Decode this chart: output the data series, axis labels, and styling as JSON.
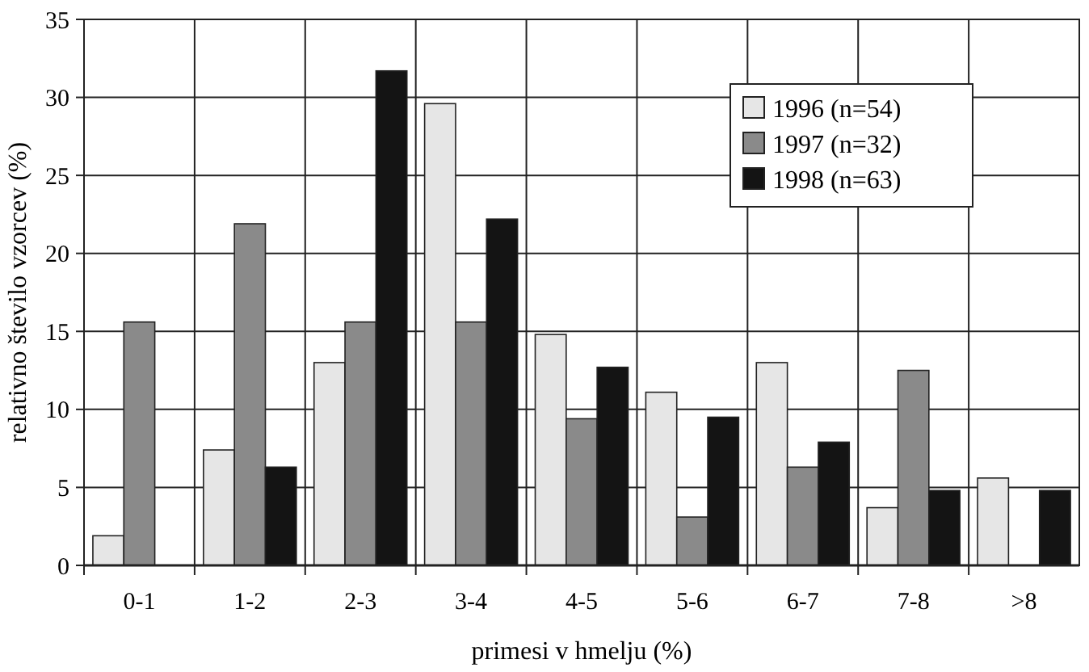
{
  "chart_data": {
    "type": "bar",
    "xlabel": "primesi v hmelju (%)",
    "ylabel": "relativno število vzorcev (%)",
    "categories": [
      "0-1",
      "1-2",
      "2-3",
      "3-4",
      "4-5",
      "5-6",
      "6-7",
      "7-8",
      ">8"
    ],
    "series": [
      {
        "name": "1996 (n=54)",
        "color": "#e6e6e6",
        "values": [
          1.9,
          7.4,
          13,
          29.6,
          14.8,
          11.1,
          13,
          3.7,
          5.6
        ]
      },
      {
        "name": "1997 (n=32)",
        "color": "#8a8a8a",
        "values": [
          15.6,
          21.9,
          15.6,
          15.6,
          9.4,
          3.1,
          6.3,
          12.5,
          0
        ]
      },
      {
        "name": "1998 (n=63)",
        "color": "#141414",
        "values": [
          0,
          6.3,
          31.7,
          22.2,
          12.7,
          9.5,
          7.9,
          4.8,
          4.8
        ]
      }
    ],
    "ylim": [
      0,
      35
    ],
    "yticks": [
      0,
      5,
      10,
      15,
      20,
      25,
      30,
      35
    ],
    "grid": true,
    "legend": "top right"
  }
}
